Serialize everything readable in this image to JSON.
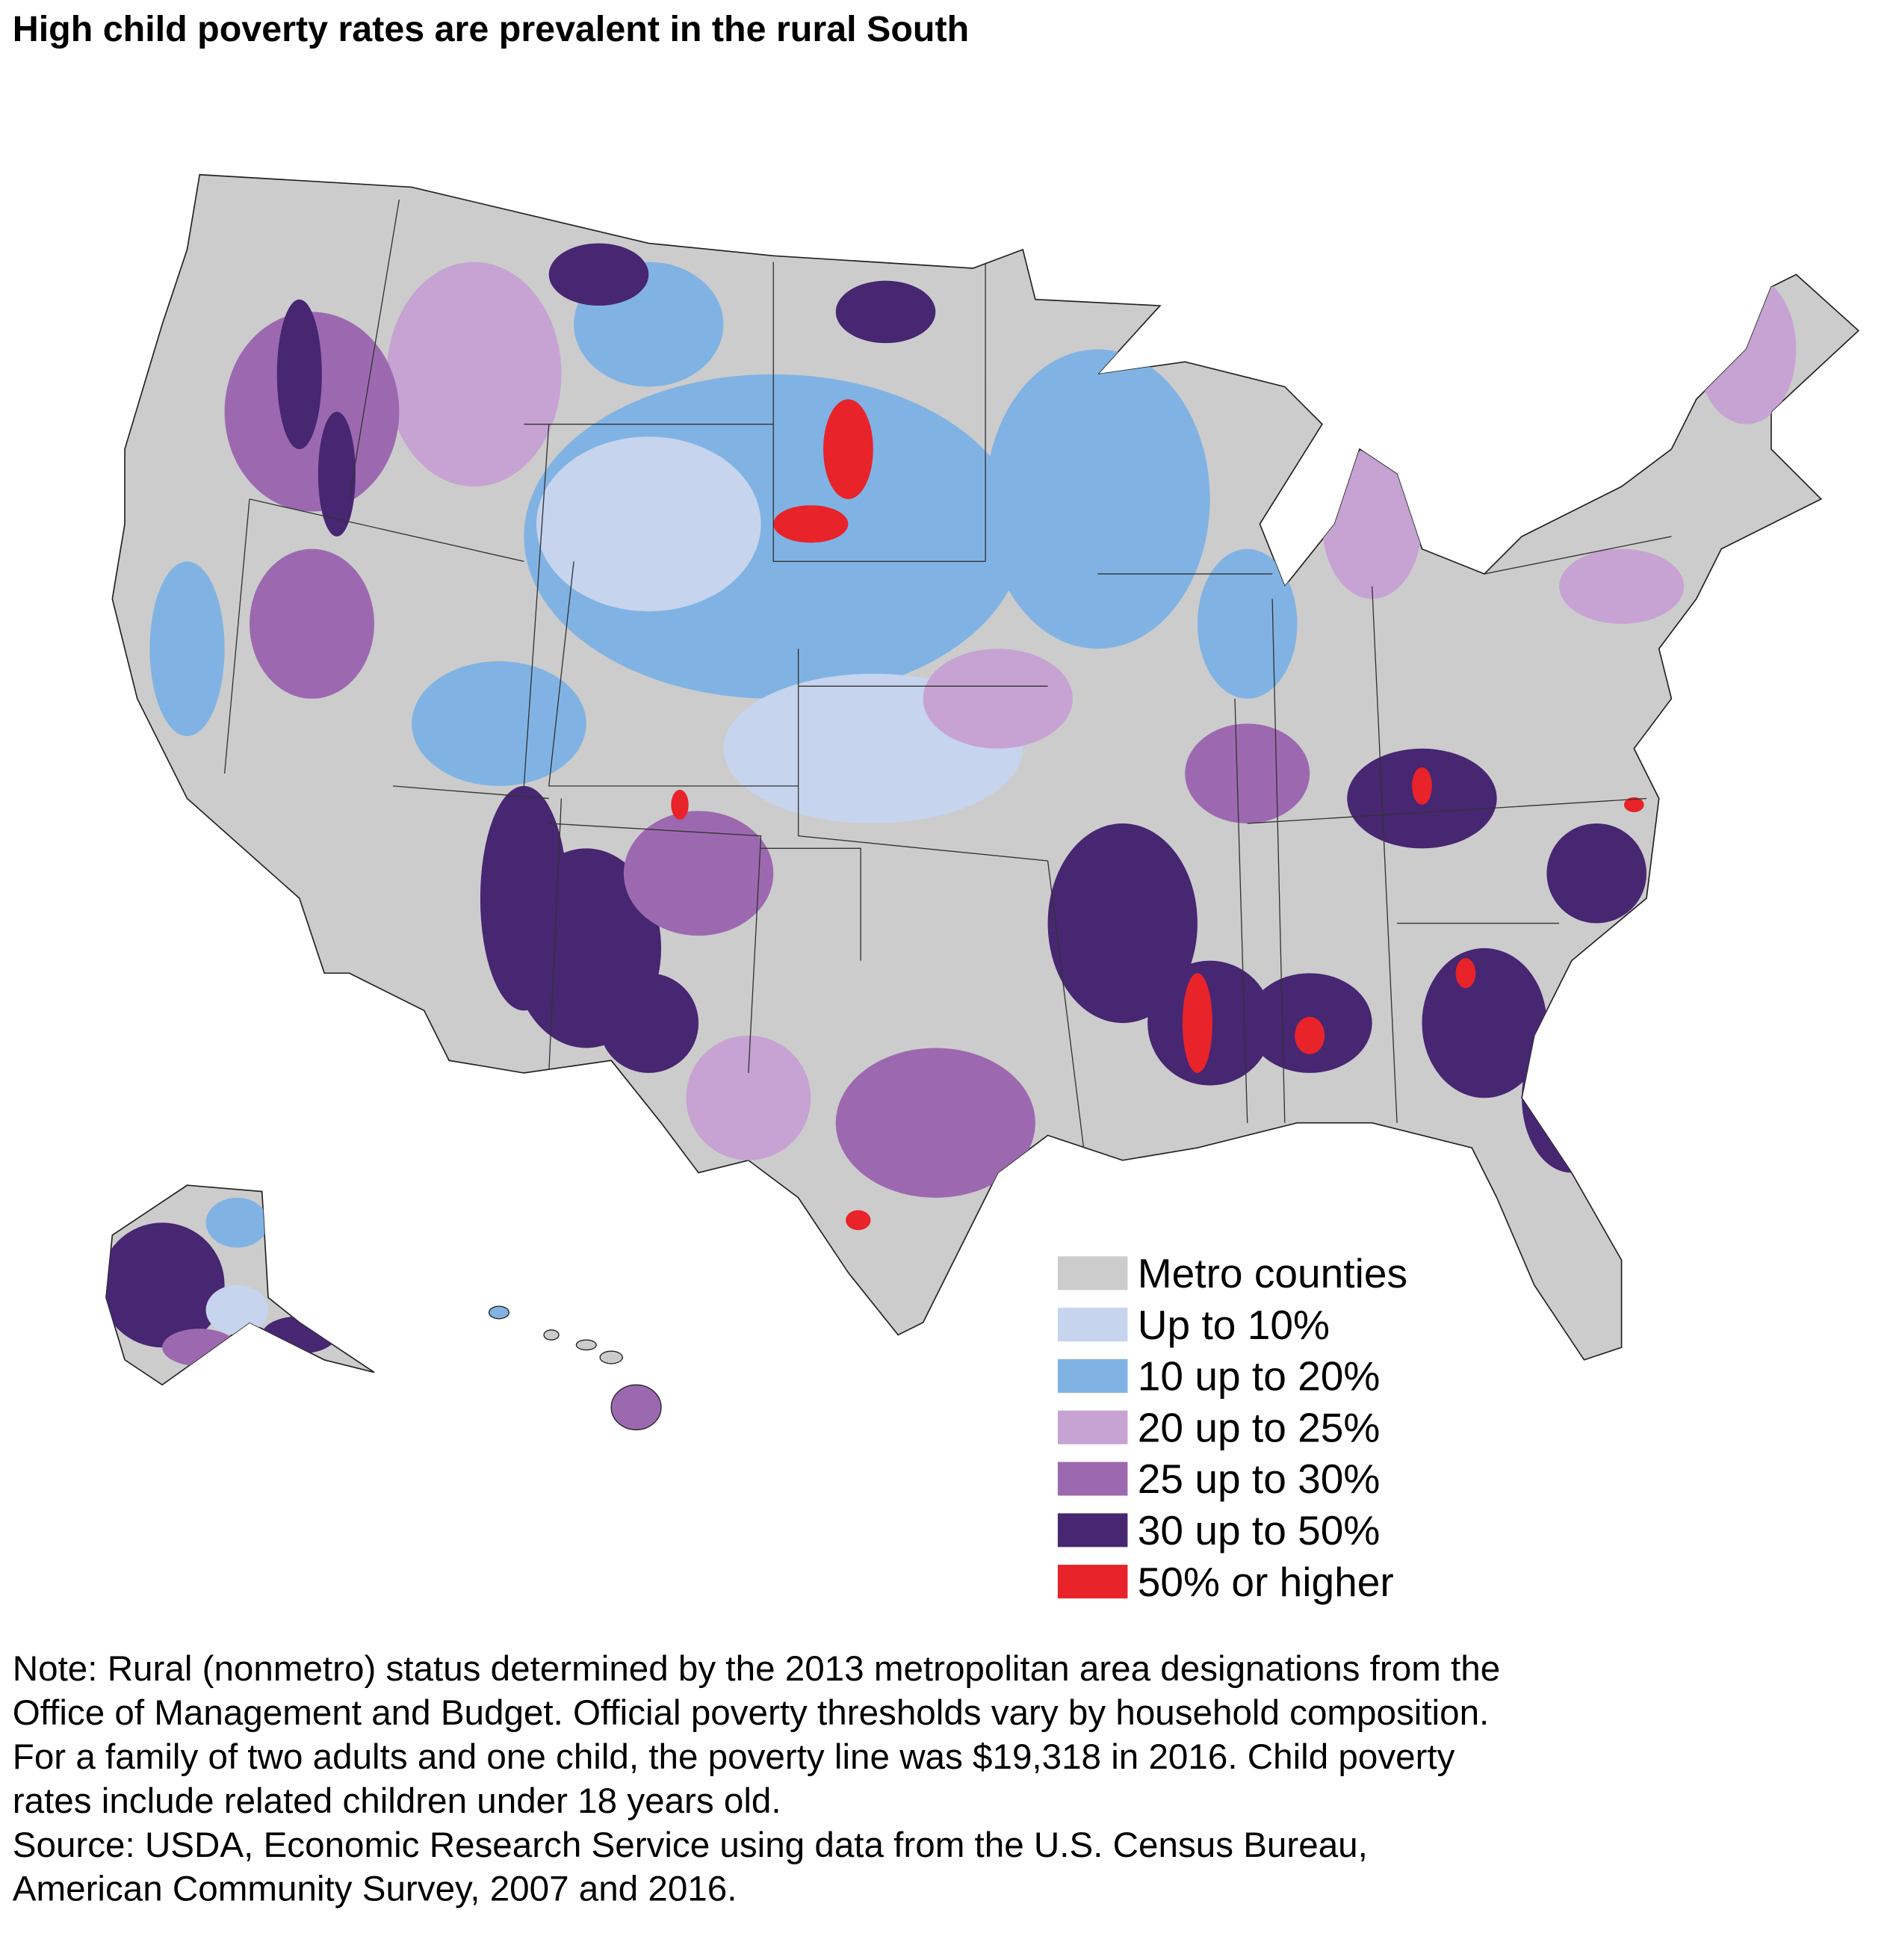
{
  "title": "High child poverty rates are prevalent in the rural South",
  "legend": [
    {
      "label": "Metro counties",
      "color": "#cccccc"
    },
    {
      "label": "Up to 10%",
      "color": "#c6d4ee"
    },
    {
      "label": "10 up to 20%",
      "color": "#80b3e3"
    },
    {
      "label": "20 up to 25%",
      "color": "#c6a3d2"
    },
    {
      "label": "25 up to 30%",
      "color": "#9c69b0"
    },
    {
      "label": "30 up to 50%",
      "color": "#472672"
    },
    {
      "label": "50% or higher",
      "color": "#e8232a"
    }
  ],
  "note": [
    "Note: Rural (nonmetro) status determined by the 2013 metropolitan area designations from the",
    "Office of Management and Budget. Official poverty thresholds vary by household composition.",
    "For a family of two adults and one child, the poverty line was $19,318 in 2016. Child poverty",
    "rates include related children under 18 years old."
  ],
  "source": [
    "Source: USDA, Economic Research Service using data from the U.S. Census Bureau,",
    "American Community Survey, 2007 and 2016."
  ]
}
